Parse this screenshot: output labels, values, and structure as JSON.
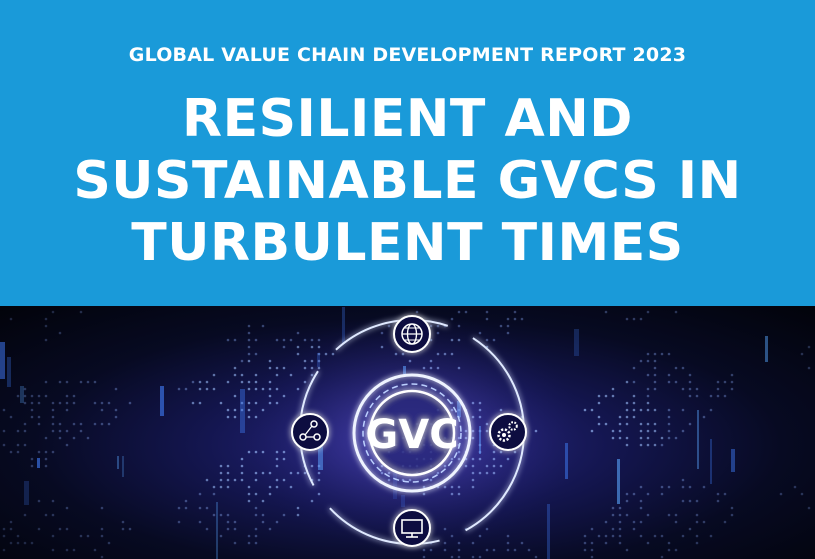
{
  "cover": {
    "subtitle": "GLOBAL VALUE CHAIN DEVELOPMENT REPORT 2023",
    "title_lines": [
      "RESILIENT AND",
      "SUSTAINABLE GVCS IN",
      "TURBULENT TIMES"
    ],
    "emblem_text": "GVC",
    "icons": [
      "globe-icon",
      "network-share-icon",
      "gears-icon",
      "monitor-icon"
    ],
    "colors": {
      "banner": "#1a9ad9",
      "text": "#ffffff",
      "glow": "#8fb8ff"
    }
  }
}
